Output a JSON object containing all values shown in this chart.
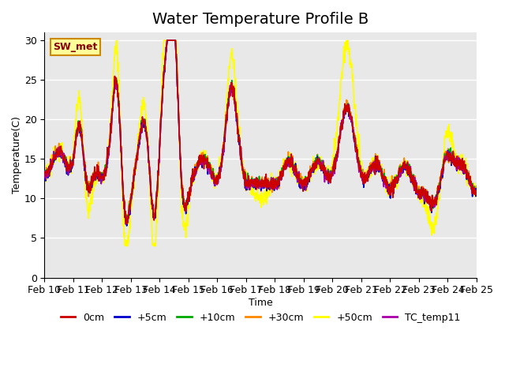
{
  "title": "Water Temperature Profile B",
  "xlabel": "Time",
  "ylabel": "Temperature(C)",
  "ylim": [
    0,
    31
  ],
  "yticks": [
    0,
    5,
    10,
    15,
    20,
    25,
    30
  ],
  "date_labels": [
    "Feb 10",
    "Feb 11",
    "Feb 12",
    "Feb 13",
    "Feb 14",
    "Feb 15",
    "Feb 16",
    "Feb 17",
    "Feb 18",
    "Feb 19",
    "Feb 20",
    "Feb 21",
    "Feb 22",
    "Feb 23",
    "Feb 24",
    "Feb 25"
  ],
  "legend_labels": [
    "0cm",
    "+5cm",
    "+10cm",
    "+30cm",
    "+50cm",
    "TC_temp11"
  ],
  "legend_colors": [
    "#cc0000",
    "#0000cc",
    "#00aa00",
    "#ff8800",
    "#ffff00",
    "#aa00aa"
  ],
  "sw_met_box_color": "#ffff99",
  "sw_met_text_color": "#880000",
  "sw_met_border_color": "#cc8800",
  "plot_bg_color": "#e8e8e8",
  "grid_color": "#ffffff",
  "title_fontsize": 14,
  "axis_fontsize": 9,
  "legend_fontsize": 9,
  "line_width": 1.2
}
